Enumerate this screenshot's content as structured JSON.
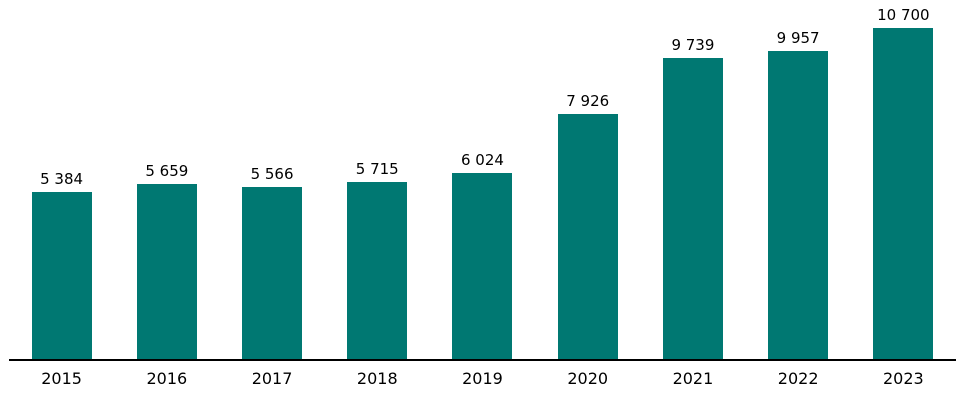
{
  "chart_data": {
    "type": "bar",
    "categories": [
      "2015",
      "2016",
      "2017",
      "2018",
      "2019",
      "2020",
      "2021",
      "2022",
      "2023"
    ],
    "values": [
      5384,
      5659,
      5566,
      5715,
      6024,
      7926,
      9739,
      9957,
      10700
    ],
    "value_labels": [
      "5 384",
      "5 659",
      "5 566",
      "5 715",
      "6 024",
      "7 926",
      "9 739",
      "9 957",
      "10 700"
    ],
    "title": "",
    "xlabel": "",
    "ylabel": "",
    "ylim": [
      0,
      11700
    ],
    "grid": false,
    "legend": false,
    "layout_hints": {
      "bar_color": "#007872",
      "label_color": "#000000",
      "axis_line_color": "#000000",
      "background_color": "#ffffff",
      "value_labels_position": "above-bars",
      "axis": "x-baseline-only"
    }
  }
}
